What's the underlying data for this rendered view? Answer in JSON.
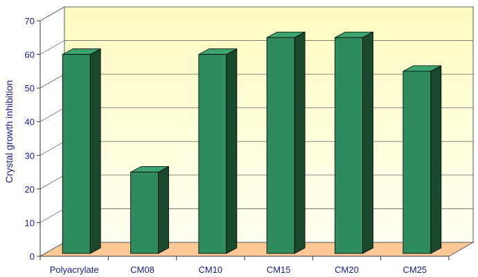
{
  "chart_data": {
    "type": "bar",
    "title": "",
    "xlabel": "",
    "ylabel": "Crystal growth inhibition",
    "categories": [
      "Polyacrylate",
      "CM08",
      "CM10",
      "CM15",
      "CM20",
      "CM25"
    ],
    "values": [
      60,
      25,
      60,
      65,
      65,
      55
    ],
    "ylim": [
      0,
      70
    ],
    "yticks": [
      0,
      10,
      20,
      30,
      40,
      50,
      60,
      70
    ],
    "grid": true,
    "legend": "none",
    "colors": {
      "bar_front": "#2e8b5e",
      "bar_top": "#3aa56e",
      "bar_side": "#1a4a2e",
      "wall_top": "#fdfbc0",
      "wall_bottom": "#fffff0",
      "floor": "#fdc896",
      "label": "#1c1c8c"
    }
  }
}
